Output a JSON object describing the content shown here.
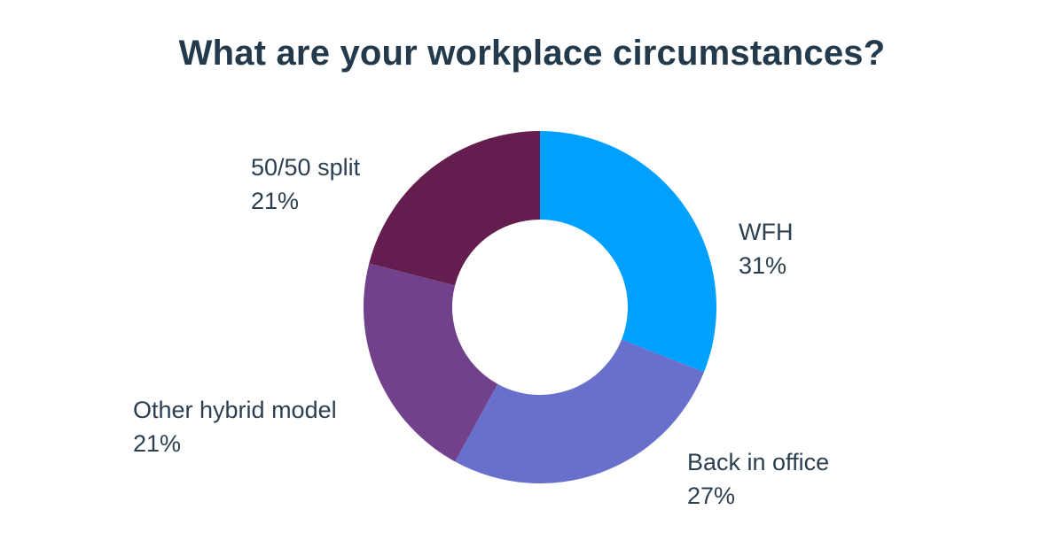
{
  "chart_data": {
    "type": "pie",
    "variant": "donut",
    "title": "What are your workplace circumstances?",
    "legend": "none",
    "slices": [
      {
        "label": "WFH",
        "value": 31,
        "display": "31%",
        "color": "#00a0ff"
      },
      {
        "label": "Back in office",
        "value": 27,
        "display": "27%",
        "color": "#6970cc"
      },
      {
        "label": "Other hybrid model",
        "value": 21,
        "display": "21%",
        "color": "#71428b"
      },
      {
        "label": "50/50 split",
        "value": 21,
        "display": "21%",
        "color": "#641d4f"
      }
    ],
    "start_angle": "12 o'clock",
    "direction": "clockwise"
  }
}
